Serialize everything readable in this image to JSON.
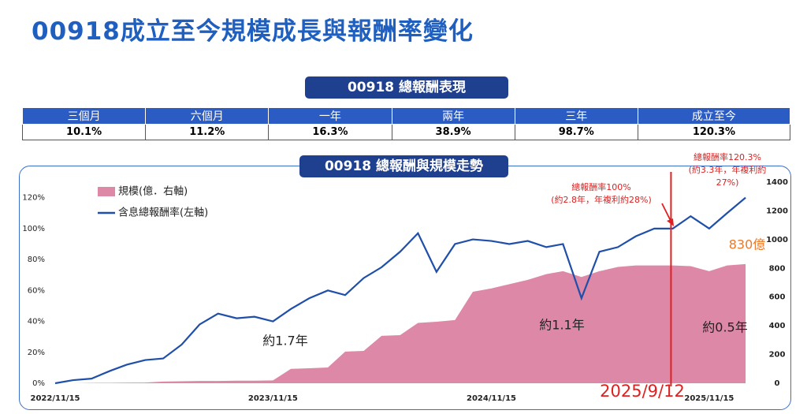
{
  "title": "00918成立至今規模成長與報酬率變化",
  "table": {
    "title": "00918 總報酬表現",
    "headers": [
      "三個月",
      "六個月",
      "一年",
      "兩年",
      "三年",
      "成立至今"
    ],
    "values": [
      "10.1%",
      "11.2%",
      "16.3%",
      "38.9%",
      "98.7%",
      "120.3%"
    ]
  },
  "chart_data": {
    "type": "line",
    "title": "00918 總報酬與規模走勢",
    "x": [
      "2022/11/15",
      "2022/12/15",
      "2023/01/15",
      "2023/02/15",
      "2023/03/15",
      "2023/04/15",
      "2023/05/15",
      "2023/06/15",
      "2023/07/15",
      "2023/08/15",
      "2023/09/15",
      "2023/10/15",
      "2023/11/15",
      "2023/12/15",
      "2024/01/15",
      "2024/02/15",
      "2024/03/15",
      "2024/04/15",
      "2024/05/15",
      "2024/06/15",
      "2024/07/15",
      "2024/08/15",
      "2024/09/15",
      "2024/10/15",
      "2024/11/15",
      "2024/12/15",
      "2025/01/15",
      "2025/02/15",
      "2025/03/15",
      "2025/04/15",
      "2025/05/15",
      "2025/06/15",
      "2025/07/15",
      "2025/08/15",
      "2025/09/15",
      "2025/10/15",
      "2025/11/15",
      "2025/12/15",
      "2026/01/15"
    ],
    "series": [
      {
        "name": "規模(億．右軸)",
        "color": "#dd88a6",
        "axis": "y2",
        "kind": "area",
        "values": [
          0,
          0,
          2,
          3,
          4,
          5,
          12,
          14,
          16,
          16,
          18,
          18,
          20,
          100,
          104,
          110,
          220,
          225,
          330,
          335,
          420,
          428,
          440,
          637,
          660,
          690,
          720,
          760,
          780,
          740,
          780,
          810,
          820,
          820,
          820,
          815,
          780,
          820,
          830
        ]
      },
      {
        "name": "含息總報酬率(左軸)",
        "color": "#1f4fa8",
        "kind": "line",
        "values": [
          0,
          2,
          3,
          8,
          12,
          15,
          16,
          25,
          38,
          45,
          42,
          43,
          40,
          48,
          55,
          60,
          57,
          68,
          75,
          85,
          97,
          72,
          90,
          93,
          92,
          90,
          92,
          88,
          90,
          55,
          85,
          88,
          95,
          100,
          100,
          108,
          100,
          110,
          120
        ]
      }
    ],
    "xlim": [
      "2022/11/15",
      "2026/02/09"
    ],
    "xticks": [
      "2022/11/15",
      "2023/11/15",
      "2024/11/15",
      "2025/11/15"
    ],
    "ylim": [
      0,
      130
    ],
    "yticks": [
      {
        "value": 0,
        "label": "0%"
      },
      {
        "value": 20,
        "label": "20%"
      },
      {
        "value": 40,
        "label": "40%"
      },
      {
        "value": 60,
        "label": "60%"
      },
      {
        "value": 80,
        "label": "80%"
      },
      {
        "value": 100,
        "label": "100%"
      },
      {
        "value": 120,
        "label": "120%"
      }
    ],
    "y2lim": [
      0,
      1400
    ],
    "y2ticks": [
      0,
      200,
      400,
      600,
      800,
      1000,
      1200,
      1400
    ],
    "annotations": [
      "約1.7年",
      "約1.1年",
      "約0.5年",
      "830億",
      "2025/9/12",
      "總報酬率100%",
      "(約2.8年，年複利約28%)",
      "總報酬率120.3%",
      "(約3.3年，年複利約",
      "27%)"
    ]
  }
}
